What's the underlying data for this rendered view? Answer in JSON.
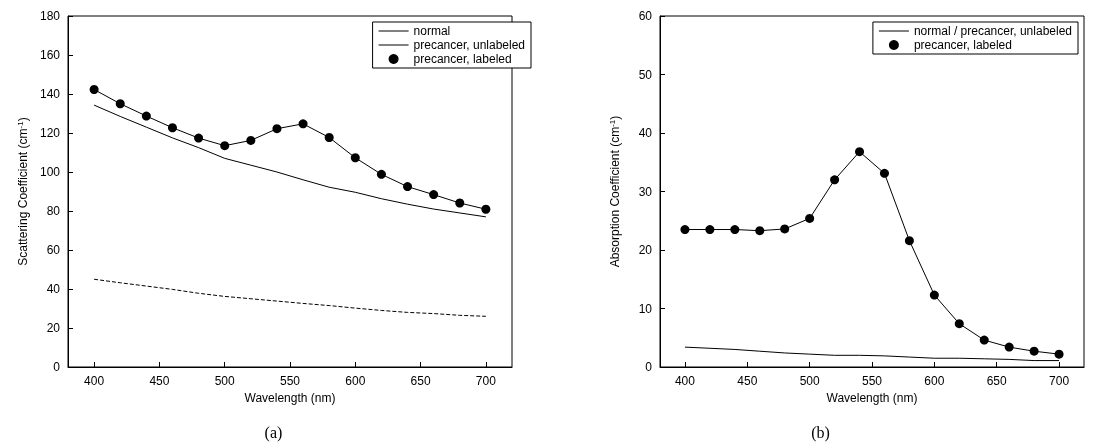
{
  "chart_data": [
    {
      "type": "line",
      "xlabel": "Wavelength (nm)",
      "ylabel": "Scattering Coefficient (cm$^{-1}$)",
      "annotations": [
        "(a)"
      ],
      "x": [
        400,
        420,
        440,
        460,
        480,
        500,
        520,
        540,
        560,
        580,
        600,
        620,
        640,
        660,
        680,
        700
      ],
      "xlim": [
        380,
        720
      ],
      "xticks": [
        400,
        450,
        500,
        550,
        600,
        650,
        700
      ],
      "ylim": [
        0,
        180
      ],
      "yticks": [
        0,
        20,
        40,
        60,
        80,
        100,
        120,
        140,
        160,
        180
      ],
      "grid": false,
      "legend": "top right",
      "series": [
        {
          "name": "normal",
          "color": "#000000",
          "marker": "none",
          "line_style": "dashed",
          "values": [
            45,
            43.2,
            41.5,
            39.8,
            37.8,
            36.2,
            35,
            33.8,
            32.6,
            31.5,
            30.2,
            29,
            28,
            27.4,
            26.5,
            26
          ]
        },
        {
          "name": "precancer, unlabeled",
          "color": "#000000",
          "marker": "none",
          "line_style": "solid",
          "values": [
            134.3,
            128.5,
            123,
            117.5,
            112.5,
            107,
            103.5,
            100,
            96,
            92.2,
            89.6,
            86.3,
            83.5,
            81,
            79,
            77
          ]
        },
        {
          "name": "precancer, labeled",
          "color": "#000000",
          "marker": "circle",
          "line_style": "solid",
          "values": [
            142.3,
            135,
            128.7,
            122.7,
            117.4,
            113.5,
            116.2,
            122.2,
            124.7,
            117.7,
            107.3,
            98.8,
            92.5,
            88.4,
            84.1,
            80.9
          ]
        }
      ]
    },
    {
      "type": "line",
      "xlabel": "Wavelength (nm)",
      "ylabel": "Absorption Coefficient (cm$^{-1}$)",
      "annotations": [
        "(b)"
      ],
      "x": [
        400,
        420,
        440,
        460,
        480,
        500,
        520,
        540,
        560,
        580,
        600,
        620,
        640,
        660,
        680,
        700
      ],
      "xlim": [
        380,
        720
      ],
      "xticks": [
        400,
        450,
        500,
        550,
        600,
        650,
        700
      ],
      "ylim": [
        0,
        60
      ],
      "yticks": [
        0,
        10,
        20,
        30,
        40,
        50,
        60
      ],
      "grid": false,
      "legend": "top right",
      "series": [
        {
          "name": "normal / precancer, unlabeled",
          "color": "#000000",
          "marker": "none",
          "line_style": "solid",
          "values": [
            3.4,
            3.2,
            3.0,
            2.7,
            2.4,
            2.2,
            2.0,
            2.0,
            1.9,
            1.7,
            1.5,
            1.5,
            1.4,
            1.3,
            1.1,
            1.1
          ]
        },
        {
          "name": "precancer, labeled",
          "color": "#000000",
          "marker": "circle",
          "line_style": "solid",
          "values": [
            23.5,
            23.5,
            23.5,
            23.3,
            23.6,
            25.4,
            32,
            36.8,
            33.1,
            21.6,
            12.3,
            7.4,
            4.6,
            3.4,
            2.7,
            2.2
          ]
        }
      ]
    }
  ]
}
